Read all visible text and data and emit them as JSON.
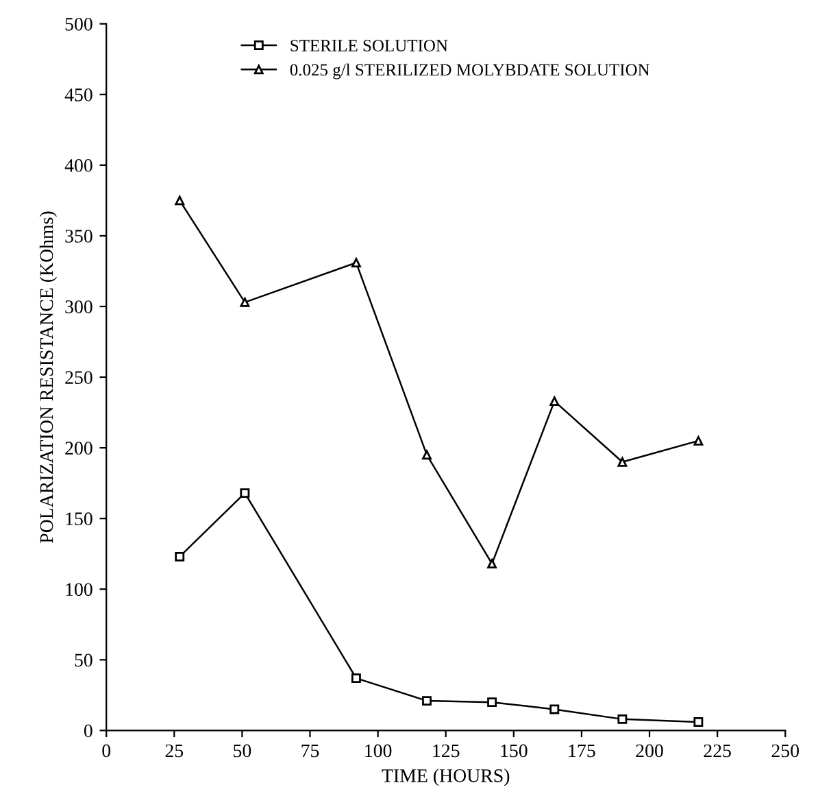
{
  "chart_data": {
    "type": "line",
    "xlabel": "TIME (HOURS)",
    "ylabel": "POLARIZATION RESISTANCE (KOhms)",
    "xlim": [
      0,
      250
    ],
    "xticks": [
      0,
      25,
      50,
      75,
      100,
      125,
      150,
      175,
      200,
      225,
      250
    ],
    "ylim": [
      0,
      500
    ],
    "yticks": [
      0,
      50,
      100,
      150,
      200,
      250,
      300,
      350,
      400,
      450,
      500
    ],
    "grid": false,
    "legend": "top",
    "line_style": "solid",
    "series": [
      {
        "name": "STERILE SOLUTION",
        "color": "#000000",
        "marker": "square",
        "x": [
          27,
          51,
          92,
          118,
          142,
          165,
          190,
          218
        ],
        "values": [
          123,
          168,
          37,
          21,
          20,
          15,
          8,
          6
        ]
      },
      {
        "name": "0.025 g/l STERILIZED MOLYBDATE SOLUTION",
        "color": "#000000",
        "marker": "triangle",
        "x": [
          27,
          51,
          92,
          118,
          142,
          165,
          190,
          218
        ],
        "values": [
          375,
          303,
          331,
          195,
          118,
          233,
          190,
          205
        ]
      }
    ]
  }
}
